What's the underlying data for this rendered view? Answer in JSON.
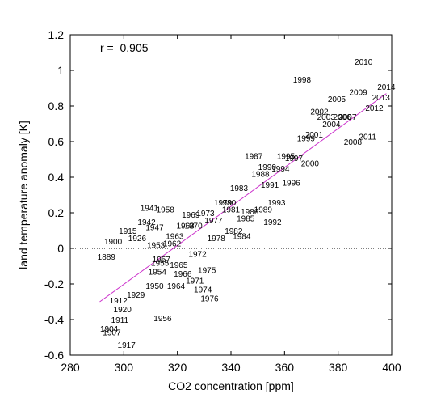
{
  "chart_data": {
    "type": "scatter",
    "xlabel": "CO2 concentration [ppm]",
    "ylabel": "land temperature anomaly [K]",
    "xlim": [
      280,
      400
    ],
    "ylim": [
      -0.6,
      1.2
    ],
    "x_ticks": [
      "280",
      "300",
      "320",
      "340",
      "360",
      "380",
      "400"
    ],
    "y_ticks": [
      "-0.6",
      "-0.4",
      "-0.2",
      "0",
      "0.2",
      "0.4",
      "0.6",
      "0.8",
      "1",
      "1.2"
    ],
    "annotation": "r =  0.905",
    "zero_line": "dotted",
    "fit_line": {
      "color": "#cc33cc",
      "x": [
        291,
        398
      ],
      "y": [
        -0.3,
        0.87
      ]
    },
    "points": [
      {
        "label": "1889",
        "x": 293.5,
        "y": -0.045
      },
      {
        "label": "1900",
        "x": 296.0,
        "y": 0.04
      },
      {
        "label": "1915",
        "x": 301.5,
        "y": 0.1
      },
      {
        "label": "1926",
        "x": 305.0,
        "y": 0.06
      },
      {
        "label": "1941",
        "x": 309.5,
        "y": 0.23
      },
      {
        "label": "1942",
        "x": 308.5,
        "y": 0.15
      },
      {
        "label": "1947",
        "x": 311.5,
        "y": 0.12
      },
      {
        "label": "1958",
        "x": 315.5,
        "y": 0.22
      },
      {
        "label": "1963",
        "x": 319.0,
        "y": 0.07
      },
      {
        "label": "1968",
        "x": 323.0,
        "y": 0.13
      },
      {
        "label": "1969",
        "x": 325.0,
        "y": 0.19
      },
      {
        "label": "1970",
        "x": 326.0,
        "y": 0.13
      },
      {
        "label": "1972",
        "x": 327.5,
        "y": -0.03
      },
      {
        "label": "1973",
        "x": 330.5,
        "y": 0.2
      },
      {
        "label": "1977",
        "x": 333.5,
        "y": 0.16
      },
      {
        "label": "1978",
        "x": 334.5,
        "y": 0.06
      },
      {
        "label": "1975",
        "x": 331.0,
        "y": -0.12
      },
      {
        "label": "1974",
        "x": 329.5,
        "y": -0.23
      },
      {
        "label": "1976",
        "x": 332.0,
        "y": -0.28
      },
      {
        "label": "1971",
        "x": 326.5,
        "y": -0.18
      },
      {
        "label": "1966",
        "x": 322.0,
        "y": -0.14
      },
      {
        "label": "1965",
        "x": 320.5,
        "y": -0.09
      },
      {
        "label": "1964",
        "x": 319.5,
        "y": -0.21
      },
      {
        "label": "1956",
        "x": 314.5,
        "y": -0.39
      },
      {
        "label": "1950",
        "x": 311.5,
        "y": -0.21
      },
      {
        "label": "1980",
        "x": 338.5,
        "y": 0.26
      },
      {
        "label": "1979",
        "x": 337.0,
        "y": 0.26
      },
      {
        "label": "1981",
        "x": 340.0,
        "y": 0.22
      },
      {
        "label": "1982",
        "x": 341.0,
        "y": 0.1
      },
      {
        "label": "1984",
        "x": 344.0,
        "y": 0.07
      },
      {
        "label": "1985",
        "x": 345.5,
        "y": 0.17
      },
      {
        "label": "1983",
        "x": 343.0,
        "y": 0.34
      },
      {
        "label": "1986",
        "x": 347.0,
        "y": 0.21
      },
      {
        "label": "1987",
        "x": 348.5,
        "y": 0.52
      },
      {
        "label": "1988",
        "x": 351.0,
        "y": 0.42
      },
      {
        "label": "1989",
        "x": 352.0,
        "y": 0.22
      },
      {
        "label": "1990",
        "x": 353.5,
        "y": 0.46
      },
      {
        "label": "1991",
        "x": 354.5,
        "y": 0.36
      },
      {
        "label": "1992",
        "x": 355.5,
        "y": 0.15
      },
      {
        "label": "1993",
        "x": 357.0,
        "y": 0.26
      },
      {
        "label": "1994",
        "x": 358.5,
        "y": 0.45
      },
      {
        "label": "1995",
        "x": 360.5,
        "y": 0.52
      },
      {
        "label": "1996",
        "x": 362.5,
        "y": 0.37
      },
      {
        "label": "1997",
        "x": 363.5,
        "y": 0.51
      },
      {
        "label": "1998",
        "x": 366.5,
        "y": 0.95
      },
      {
        "label": "1999",
        "x": 368.0,
        "y": 0.62
      },
      {
        "label": "2000",
        "x": 369.5,
        "y": 0.48
      },
      {
        "label": "2001",
        "x": 371.0,
        "y": 0.64
      },
      {
        "label": "2002",
        "x": 373.0,
        "y": 0.77
      },
      {
        "label": "2003",
        "x": 375.5,
        "y": 0.74
      },
      {
        "label": "2004",
        "x": 377.5,
        "y": 0.7
      },
      {
        "label": "2005",
        "x": 379.5,
        "y": 0.84
      },
      {
        "label": "2006",
        "x": 381.5,
        "y": 0.74
      },
      {
        "label": "2007",
        "x": 383.5,
        "y": 0.74
      },
      {
        "label": "2008",
        "x": 385.5,
        "y": 0.6
      },
      {
        "label": "2009",
        "x": 387.5,
        "y": 0.88
      },
      {
        "label": "2010",
        "x": 389.5,
        "y": 1.05
      },
      {
        "label": "2011",
        "x": 391.0,
        "y": 0.63
      },
      {
        "label": "2012",
        "x": 393.5,
        "y": 0.79
      },
      {
        "label": "2013",
        "x": 396.0,
        "y": 0.85
      },
      {
        "label": "2014",
        "x": 398.0,
        "y": 0.91
      },
      {
        "label": "1907",
        "x": 295.5,
        "y": -0.47
      },
      {
        "label": "1904",
        "x": 294.5,
        "y": -0.45
      },
      {
        "label": "1917",
        "x": 301.0,
        "y": -0.54
      },
      {
        "label": "1911",
        "x": 298.5,
        "y": -0.4
      },
      {
        "label": "1920",
        "x": 299.5,
        "y": -0.34
      },
      {
        "label": "1929",
        "x": 304.5,
        "y": -0.26
      },
      {
        "label": "1912",
        "x": 298.0,
        "y": -0.29
      },
      {
        "label": "1954",
        "x": 312.5,
        "y": -0.13
      },
      {
        "label": "1955",
        "x": 313.5,
        "y": -0.08
      },
      {
        "label": "1957",
        "x": 314.0,
        "y": -0.06
      },
      {
        "label": "1953",
        "x": 312.0,
        "y": 0.02
      },
      {
        "label": "1962",
        "x": 318.0,
        "y": 0.03
      }
    ]
  }
}
